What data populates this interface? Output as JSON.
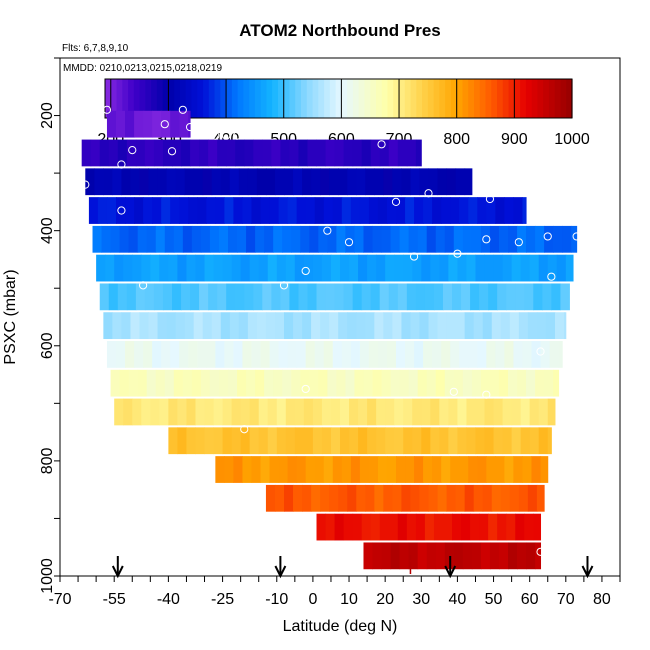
{
  "chart_data": {
    "type": "heatmap",
    "title": "ATOM2 Northbound Pres",
    "flights_note": "Flts: 6,7,8,9,10",
    "dates_note": "MMDD: 0210,0213,0215,0218,0219",
    "xlabel": "Latitude (deg N)",
    "ylabel": "PSXC (mbar)",
    "xlim": [
      -70,
      85
    ],
    "ylim": [
      1000,
      100
    ],
    "x_ticks": [
      -70,
      -55,
      -40,
      -25,
      -10,
      0,
      10,
      20,
      30,
      40,
      50,
      60,
      70,
      80
    ],
    "y_ticks": [
      200,
      400,
      600,
      800,
      1000
    ],
    "colorbar": {
      "min": 190,
      "max": 1000,
      "ticks": [
        200,
        300,
        400,
        500,
        600,
        700,
        800,
        900,
        1000
      ],
      "stops": [
        [
          190,
          "#8a2be2"
        ],
        [
          240,
          "#3f00c8"
        ],
        [
          300,
          "#0000aa"
        ],
        [
          360,
          "#0010d8"
        ],
        [
          420,
          "#0078ff"
        ],
        [
          480,
          "#14b4ff"
        ],
        [
          540,
          "#8ad8ff"
        ],
        [
          600,
          "#e6f8ff"
        ],
        [
          680,
          "#ffffa8"
        ],
        [
          740,
          "#ffd24a"
        ],
        [
          800,
          "#ffa500"
        ],
        [
          860,
          "#ff5a00"
        ],
        [
          920,
          "#e60000"
        ],
        [
          1000,
          "#960000"
        ]
      ]
    },
    "bands": [
      {
        "pres": 190,
        "lat_min": -57,
        "lat_max": -34
      },
      {
        "pres": 240,
        "lat_min": -64,
        "lat_max": 30
      },
      {
        "pres": 290,
        "lat_min": -63,
        "lat_max": 44
      },
      {
        "pres": 340,
        "lat_min": -62,
        "lat_max": 59
      },
      {
        "pres": 390,
        "lat_min": -61,
        "lat_max": 73
      },
      {
        "pres": 440,
        "lat_min": -60,
        "lat_max": 72
      },
      {
        "pres": 490,
        "lat_min": -59,
        "lat_max": 71
      },
      {
        "pres": 540,
        "lat_min": -58,
        "lat_max": 70
      },
      {
        "pres": 590,
        "lat_min": -57,
        "lat_max": 69
      },
      {
        "pres": 640,
        "lat_min": -56,
        "lat_max": 68
      },
      {
        "pres": 690,
        "lat_min": -55,
        "lat_max": 67
      },
      {
        "pres": 740,
        "lat_min": -40,
        "lat_max": 66
      },
      {
        "pres": 790,
        "lat_min": -27,
        "lat_max": 65
      },
      {
        "pres": 840,
        "lat_min": -13,
        "lat_max": 64
      },
      {
        "pres": 890,
        "lat_min": 1,
        "lat_max": 63
      },
      {
        "pres": 940,
        "lat_min": 14,
        "lat_max": 63
      }
    ],
    "points": [
      [
        -57,
        190
      ],
      [
        -64,
        220
      ],
      [
        -36,
        190
      ],
      [
        -41,
        215
      ],
      [
        -34,
        220
      ],
      [
        -50,
        260
      ],
      [
        -39,
        262
      ],
      [
        -27,
        235
      ],
      [
        -24,
        235
      ],
      [
        -21,
        235
      ],
      [
        -53,
        285
      ],
      [
        -63,
        320
      ],
      [
        -53,
        365
      ],
      [
        19,
        250
      ],
      [
        30,
        220
      ],
      [
        23,
        350
      ],
      [
        32,
        335
      ],
      [
        49,
        345
      ],
      [
        -47,
        495
      ],
      [
        -8,
        495
      ],
      [
        -2,
        470
      ],
      [
        4,
        400
      ],
      [
        10,
        420
      ],
      [
        28,
        445
      ],
      [
        40,
        440
      ],
      [
        48,
        415
      ],
      [
        57,
        420
      ],
      [
        65,
        410
      ],
      [
        66,
        480
      ],
      [
        73,
        410
      ],
      [
        -19,
        745
      ],
      [
        -2,
        675
      ],
      [
        39,
        680
      ],
      [
        48,
        685
      ],
      [
        63,
        610
      ],
      [
        63,
        958
      ]
    ],
    "arrows_lat": [
      -54,
      -9,
      38,
      76
    ],
    "marker_lat": 27
  }
}
